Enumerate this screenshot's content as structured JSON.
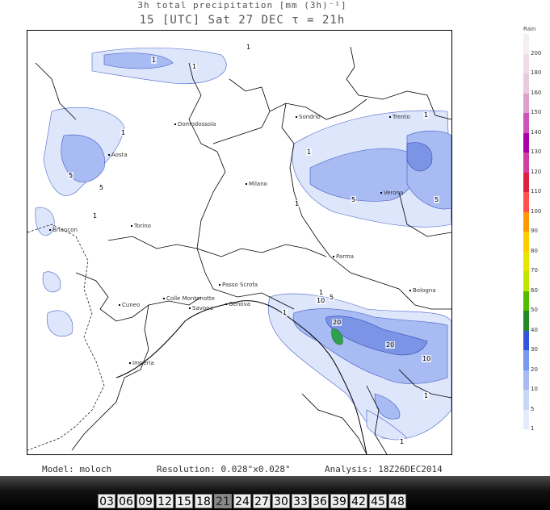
{
  "title_line1": "3h total precipitation [mm (3h)⁻¹]",
  "title_line2": "15 [UTC] Sat 27 DEC   τ = 21h",
  "map": {
    "cities": [
      {
        "name": "Domodossola",
        "id": "domodossola"
      },
      {
        "name": "Sondrio",
        "id": "sondrio"
      },
      {
        "name": "Trento",
        "id": "trento"
      },
      {
        "name": "Aosta",
        "id": "aosta"
      },
      {
        "name": "Milano",
        "id": "milano"
      },
      {
        "name": "Verona",
        "id": "verona"
      },
      {
        "name": "Torino",
        "id": "torino"
      },
      {
        "name": "Parma",
        "id": "parma"
      },
      {
        "name": "Bologna",
        "id": "bologna"
      },
      {
        "name": "Briançon",
        "id": "briancon"
      },
      {
        "name": "Passo Scrofa",
        "id": "passo-scrofa"
      },
      {
        "name": "Genova",
        "id": "genova"
      },
      {
        "name": "Cuneo",
        "id": "cuneo"
      },
      {
        "name": "Colle Montenotte",
        "id": "colle-montenotte"
      },
      {
        "name": "Savona",
        "id": "savona"
      },
      {
        "name": "Imperia",
        "id": "imperia"
      }
    ],
    "contour_labels": [
      "1",
      "1",
      "1",
      "1",
      "5",
      "1",
      "5",
      "1",
      "5",
      "5",
      "1",
      "1",
      "1",
      "1",
      "10",
      "5",
      "20",
      "20",
      "10",
      "1",
      "1"
    ]
  },
  "legend": {
    "unit": "Rain",
    "levels": [
      "200",
      "180",
      "160",
      "150",
      "140",
      "130",
      "120",
      "110",
      "100",
      "90",
      "80",
      "70",
      "60",
      "50",
      "40",
      "30",
      "20",
      "10",
      "5",
      "1"
    ],
    "colors": [
      "#f5eef5",
      "#f0dbe8",
      "#eacadd",
      "#dca0cc",
      "#cc55bb",
      "#aa00aa",
      "#d040a0",
      "#e02040",
      "#ff5050",
      "#ff9900",
      "#ffcc00",
      "#e6e600",
      "#bfe600",
      "#55bb00",
      "#228822",
      "#3355dd",
      "#7799ee",
      "#a8baf2",
      "#c8d6f8",
      "#e4ecfc"
    ]
  },
  "footer": {
    "model": "Model: moloch",
    "resolution": "Resolution: 0.028°x0.028°",
    "analysis": "Analysis: 18Z26DEC2014"
  },
  "steps": [
    "03",
    "06",
    "09",
    "12",
    "15",
    "18",
    "21",
    "24",
    "27",
    "30",
    "33",
    "36",
    "39",
    "42",
    "45",
    "48"
  ],
  "active_step": "21"
}
